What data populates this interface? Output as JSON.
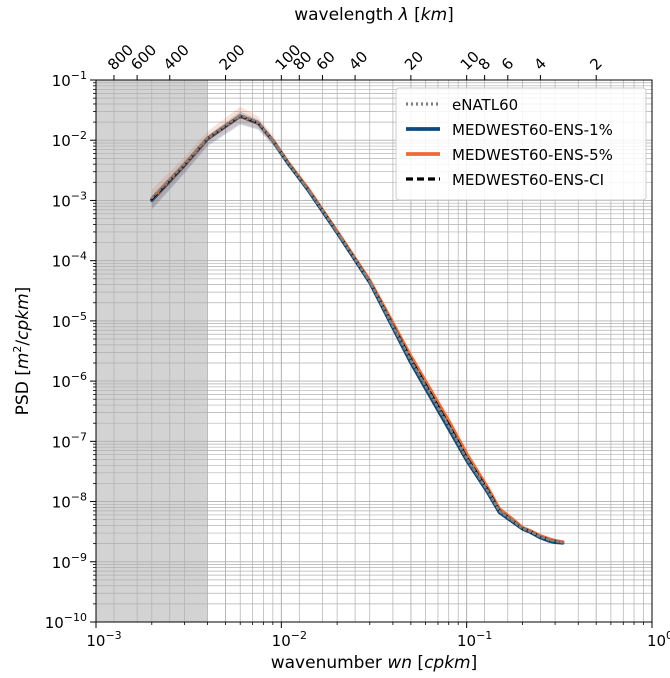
{
  "chart_data": {
    "type": "line",
    "title": "",
    "xlabel": "wavenumber wn [cpkm]",
    "xlabel_parts": {
      "pre": "wavenumber ",
      "italic": "wn",
      "post": " [",
      "italic2": "cpkm",
      "post2": "]"
    },
    "ylabel_parts": {
      "pre": "PSD [",
      "italic": "m",
      "sup": "2",
      "mid": "/",
      "italic2": "cpkm",
      "post": "]"
    },
    "top_xlabel_parts": {
      "pre": "wavelength ",
      "italic": "λ",
      "mid": " [",
      "italic2": "km",
      "post": "]"
    },
    "x_scale": "log",
    "y_scale": "log",
    "xlim": [
      0.001,
      1
    ],
    "ylim": [
      1e-10,
      0.1
    ],
    "x_ticks": [
      {
        "value": 0.001,
        "base": "10",
        "exp": "−3"
      },
      {
        "value": 0.01,
        "base": "10",
        "exp": "−2"
      },
      {
        "value": 0.1,
        "base": "10",
        "exp": "−1"
      },
      {
        "value": 1,
        "base": "10",
        "exp": "0"
      }
    ],
    "y_ticks": [
      {
        "value": 1e-10,
        "base": "10",
        "exp": "−10"
      },
      {
        "value": 1e-09,
        "base": "10",
        "exp": "−9"
      },
      {
        "value": 1e-08,
        "base": "10",
        "exp": "−8"
      },
      {
        "value": 1e-07,
        "base": "10",
        "exp": "−7"
      },
      {
        "value": 1e-06,
        "base": "10",
        "exp": "−6"
      },
      {
        "value": 1e-05,
        "base": "10",
        "exp": "−5"
      },
      {
        "value": 0.0001,
        "base": "10",
        "exp": "−4"
      },
      {
        "value": 0.001,
        "base": "10",
        "exp": "−3"
      },
      {
        "value": 0.01,
        "base": "10",
        "exp": "−2"
      },
      {
        "value": 0.1,
        "base": "10",
        "exp": "−1"
      }
    ],
    "top_ticks": [
      {
        "label": "800",
        "wavelength_km": 800
      },
      {
        "label": "600",
        "wavelength_km": 600
      },
      {
        "label": "400",
        "wavelength_km": 400
      },
      {
        "label": "200",
        "wavelength_km": 200
      },
      {
        "label": "100",
        "wavelength_km": 100
      },
      {
        "label": "80",
        "wavelength_km": 80
      },
      {
        "label": "60",
        "wavelength_km": 60
      },
      {
        "label": "40",
        "wavelength_km": 40
      },
      {
        "label": "20",
        "wavelength_km": 20
      },
      {
        "label": "10",
        "wavelength_km": 10
      },
      {
        "label": "8",
        "wavelength_km": 8
      },
      {
        "label": "6",
        "wavelength_km": 6
      },
      {
        "label": "4",
        "wavelength_km": 4
      },
      {
        "label": "2",
        "wavelength_km": 2
      }
    ],
    "shaded_region": {
      "x_start": 0.001,
      "x_end": 0.004,
      "color": "#d3d3d3"
    },
    "grid": true,
    "legend_position": "top-right",
    "series": [
      {
        "name": "eNATL60",
        "color": "#808080",
        "style": "dotted",
        "x": [
          0.002,
          0.003,
          0.004,
          0.006,
          0.0075,
          0.009,
          0.011,
          0.014,
          0.02,
          0.03,
          0.05,
          0.08,
          0.1,
          0.13,
          0.15,
          0.18,
          0.2,
          0.22,
          0.25,
          0.28,
          0.3,
          0.33
        ],
        "y": [
          0.0011,
          0.004,
          0.011,
          0.026,
          0.02,
          0.01,
          0.004,
          0.0015,
          0.0003,
          4.5e-05,
          2.2e-06,
          1.8e-07,
          5.2e-08,
          1.5e-08,
          7e-09,
          4.6e-09,
          3.6e-09,
          3.2e-09,
          2.6e-09,
          2.3e-09,
          2.2e-09,
          2.1e-09
        ]
      },
      {
        "name": "MEDWEST60-ENS-1%",
        "color": "#0b4a7f",
        "style": "solid",
        "x": [
          0.002,
          0.003,
          0.004,
          0.006,
          0.0075,
          0.009,
          0.011,
          0.014,
          0.02,
          0.03,
          0.05,
          0.08,
          0.1,
          0.13,
          0.15,
          0.18,
          0.2,
          0.22,
          0.25,
          0.28,
          0.3,
          0.33
        ],
        "y": [
          0.001,
          0.0038,
          0.0105,
          0.025,
          0.019,
          0.0098,
          0.0039,
          0.00145,
          0.00029,
          4.3e-05,
          2e-06,
          1.6e-07,
          4.8e-08,
          1.4e-08,
          6.6e-09,
          4.4e-09,
          3.5e-09,
          3.1e-09,
          2.5e-09,
          2.2e-09,
          2.1e-09,
          2.05e-09
        ]
      },
      {
        "name": "MEDWEST60-ENS-5%",
        "color": "#f06a35",
        "style": "solid",
        "x": [
          0.002,
          0.003,
          0.004,
          0.006,
          0.0075,
          0.009,
          0.011,
          0.014,
          0.02,
          0.03,
          0.05,
          0.08,
          0.1,
          0.13,
          0.15,
          0.18,
          0.2,
          0.22,
          0.25,
          0.28,
          0.3,
          0.33
        ],
        "y": [
          0.00105,
          0.0039,
          0.0108,
          0.0255,
          0.0195,
          0.01,
          0.0041,
          0.00155,
          0.00031,
          4.7e-05,
          2.6e-06,
          2.2e-07,
          6.2e-08,
          1.7e-08,
          7.6e-09,
          4.9e-09,
          3.7e-09,
          3.3e-09,
          2.7e-09,
          2.4e-09,
          2.25e-09,
          2.15e-09
        ]
      },
      {
        "name": "MEDWEST60-ENS-CI",
        "color": "#000000",
        "style": "dashed",
        "x": [
          0.002,
          0.003,
          0.004,
          0.006,
          0.0075,
          0.009,
          0.011,
          0.014,
          0.02,
          0.03,
          0.05,
          0.08,
          0.1,
          0.13,
          0.15,
          0.18,
          0.2,
          0.22,
          0.25,
          0.28,
          0.3,
          0.33
        ],
        "y": [
          0.00105,
          0.0039,
          0.0108,
          0.0255,
          0.0195,
          0.01,
          0.004,
          0.0015,
          0.0003,
          4.5e-05,
          2.3e-06,
          1.9e-07,
          5.4e-08,
          1.55e-08,
          7.1e-09,
          4.6e-09,
          3.6e-09,
          3.2e-09,
          2.6e-09,
          2.3e-09,
          2.2e-09,
          2.1e-09
        ]
      }
    ],
    "band": {
      "color": "#f06a35",
      "x": [
        0.002,
        0.003,
        0.004,
        0.006,
        0.0075,
        0.009,
        0.011,
        0.014,
        0.02
      ],
      "y_low": [
        0.00075,
        0.003,
        0.0085,
        0.019,
        0.0155,
        0.0085,
        0.0035,
        0.00135,
        0.00027
      ],
      "y_high": [
        0.0015,
        0.0052,
        0.014,
        0.036,
        0.025,
        0.012,
        0.0046,
        0.0017,
        0.00033
      ]
    },
    "band2": {
      "color": "#0b4a7f",
      "x": [
        0.002,
        0.003,
        0.004,
        0.006,
        0.0075,
        0.009,
        0.011
      ],
      "y_low": [
        0.0007,
        0.0028,
        0.008,
        0.018,
        0.015,
        0.0082,
        0.0034
      ],
      "y_high": [
        0.0012,
        0.0045,
        0.012,
        0.03,
        0.022,
        0.011,
        0.0044
      ]
    }
  }
}
